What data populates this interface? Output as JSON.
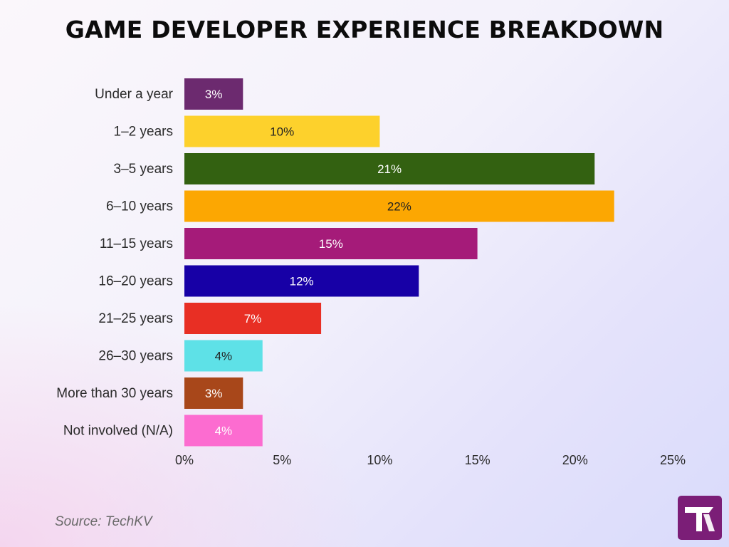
{
  "title": "GAME DEVELOPER EXPERIENCE BREAKDOWN",
  "source": "Source: TechKV",
  "chart_data": {
    "type": "bar",
    "orientation": "horizontal",
    "categories": [
      "Under a year",
      "1–2 years",
      "3–5 years",
      "6–10 years",
      "11–15 years",
      "16–20 years",
      "21–25 years",
      "26–30 years",
      "More than 30 years",
      "Not involved (N/A)"
    ],
    "values": [
      3,
      10,
      21,
      22,
      15,
      12,
      7,
      4,
      3,
      4
    ],
    "value_labels": [
      "3%",
      "10%",
      "21%",
      "22%",
      "15%",
      "12%",
      "7%",
      "4%",
      "3%",
      "4%"
    ],
    "colors": [
      "#6c2a6f",
      "#fdd12c",
      "#336111",
      "#fca702",
      "#a51b79",
      "#1700a6",
      "#e82f24",
      "#5ee1e7",
      "#a8471a",
      "#fc6cd0"
    ],
    "label_colors": [
      "#ffffff",
      "#222222",
      "#ffffff",
      "#222222",
      "#ffffff",
      "#ffffff",
      "#ffffff",
      "#222222",
      "#ffffff",
      "#ffffff"
    ],
    "xlim": [
      0,
      25
    ],
    "xticks": [
      0,
      5,
      10,
      15,
      20,
      25
    ],
    "xtick_labels": [
      "0%",
      "5%",
      "10%",
      "15%",
      "20%",
      "25%"
    ],
    "xlabel": "",
    "ylabel": "",
    "grid": false,
    "legend": "none"
  }
}
